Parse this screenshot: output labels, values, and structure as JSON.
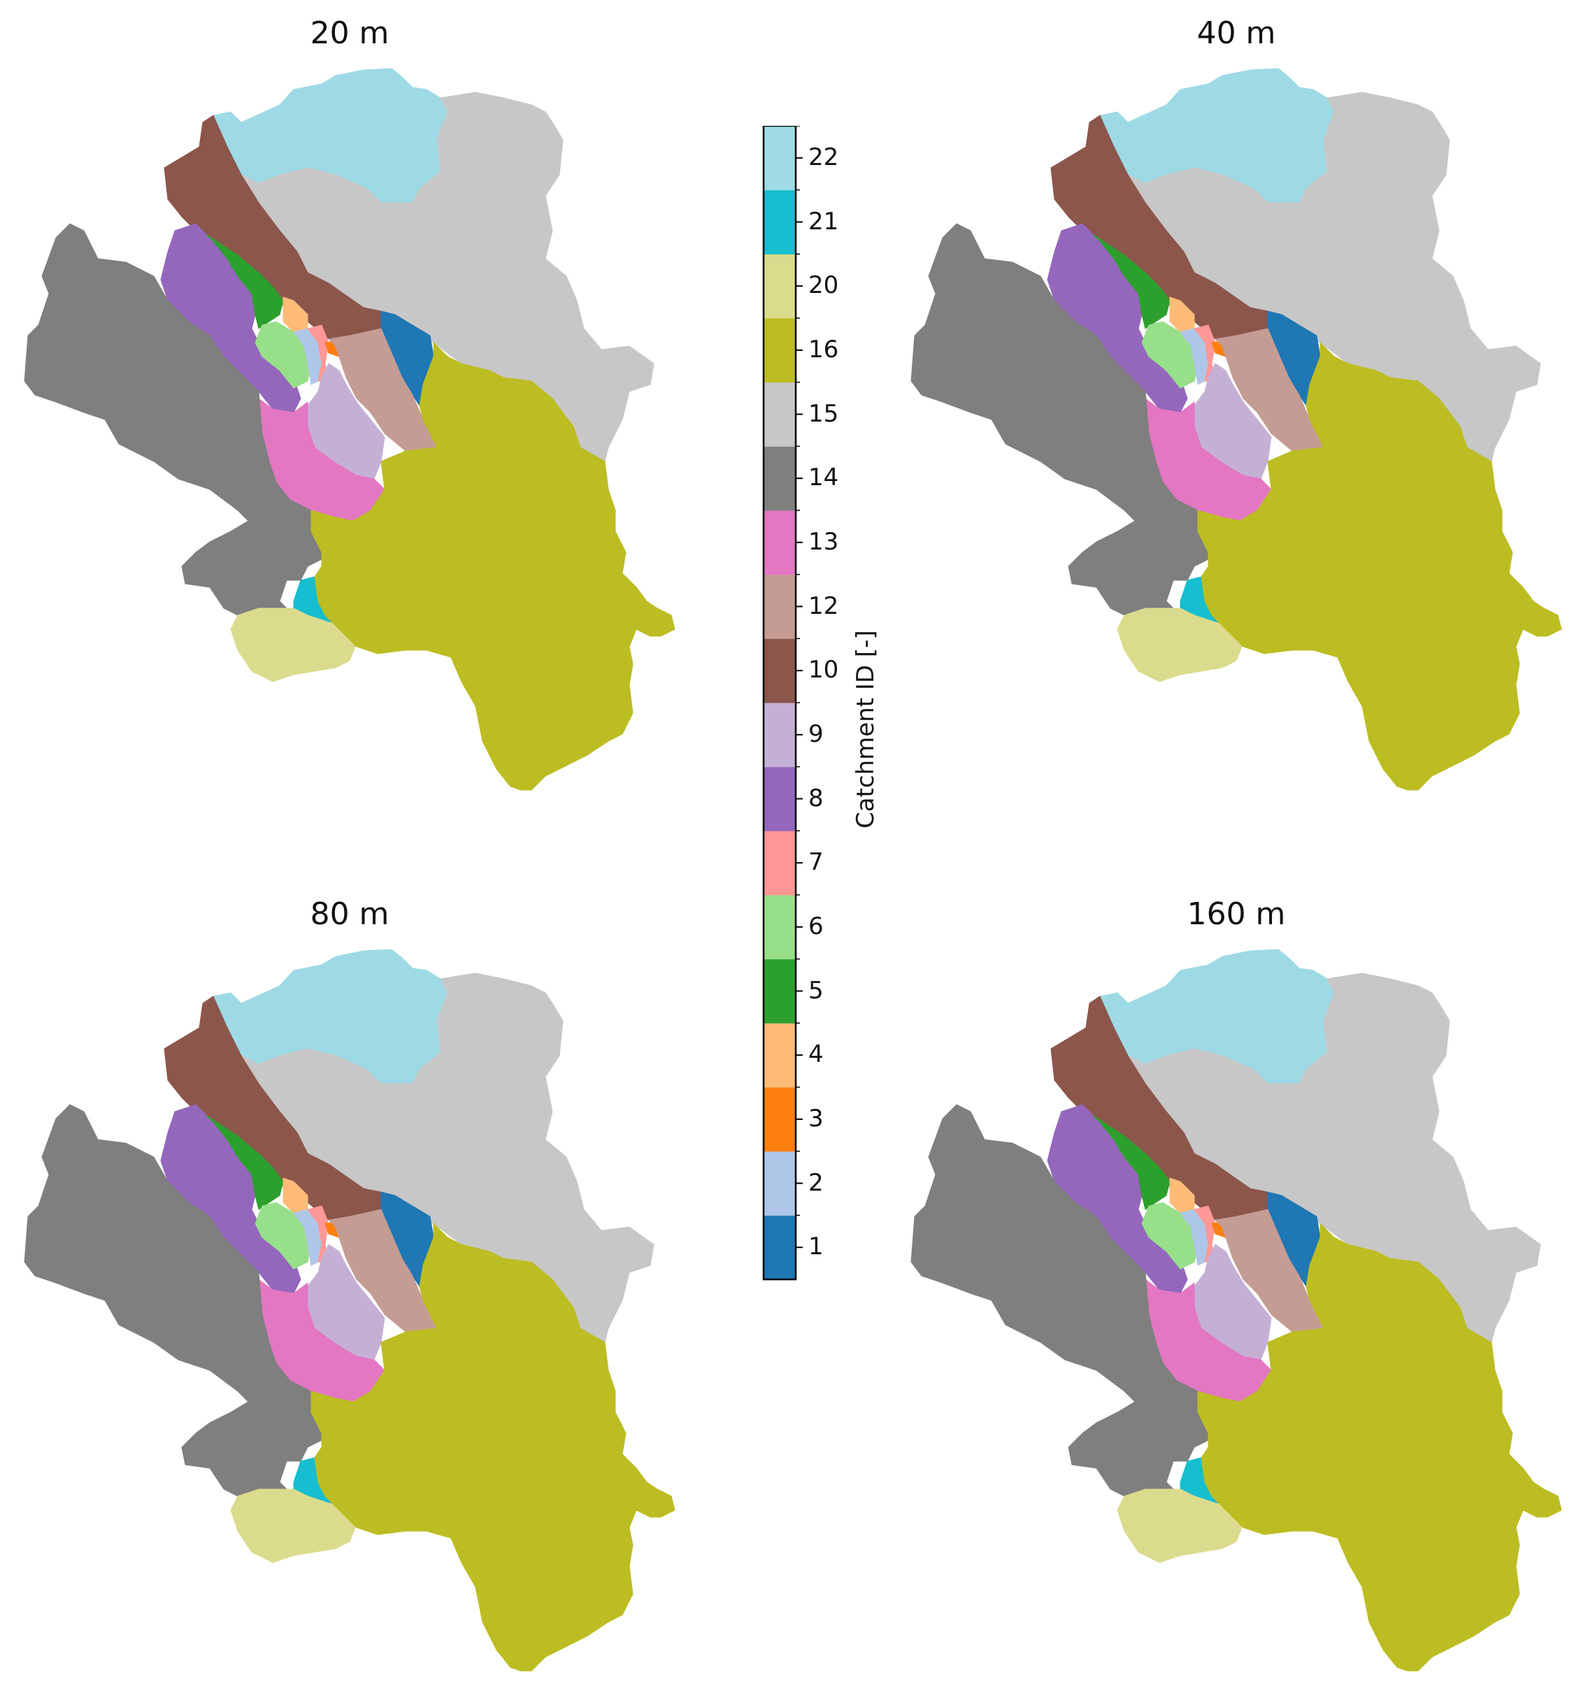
{
  "panels": [
    {
      "title": "20 m"
    },
    {
      "title": "40 m"
    },
    {
      "title": "80 m"
    },
    {
      "title": "160 m"
    }
  ],
  "colorbar": {
    "label": "Catchment ID [-]",
    "entries": [
      {
        "id": "1",
        "color": "#1f77b4"
      },
      {
        "id": "2",
        "color": "#aec7e8"
      },
      {
        "id": "3",
        "color": "#ff7f0e"
      },
      {
        "id": "4",
        "color": "#ffbb78"
      },
      {
        "id": "5",
        "color": "#2ca02c"
      },
      {
        "id": "6",
        "color": "#98df8a"
      },
      {
        "id": "7",
        "color": "#ff9896"
      },
      {
        "id": "8",
        "color": "#9467bd"
      },
      {
        "id": "9",
        "color": "#c5b0d5"
      },
      {
        "id": "10",
        "color": "#8c564b"
      },
      {
        "id": "12",
        "color": "#c49c94"
      },
      {
        "id": "13",
        "color": "#e377c2"
      },
      {
        "id": "14",
        "color": "#7f7f7f"
      },
      {
        "id": "15",
        "color": "#c7c7c7"
      },
      {
        "id": "16",
        "color": "#bcbd22"
      },
      {
        "id": "20",
        "color": "#dbdb8d"
      },
      {
        "id": "21",
        "color": "#17becf"
      },
      {
        "id": "22",
        "color": "#9edae5"
      }
    ]
  }
}
